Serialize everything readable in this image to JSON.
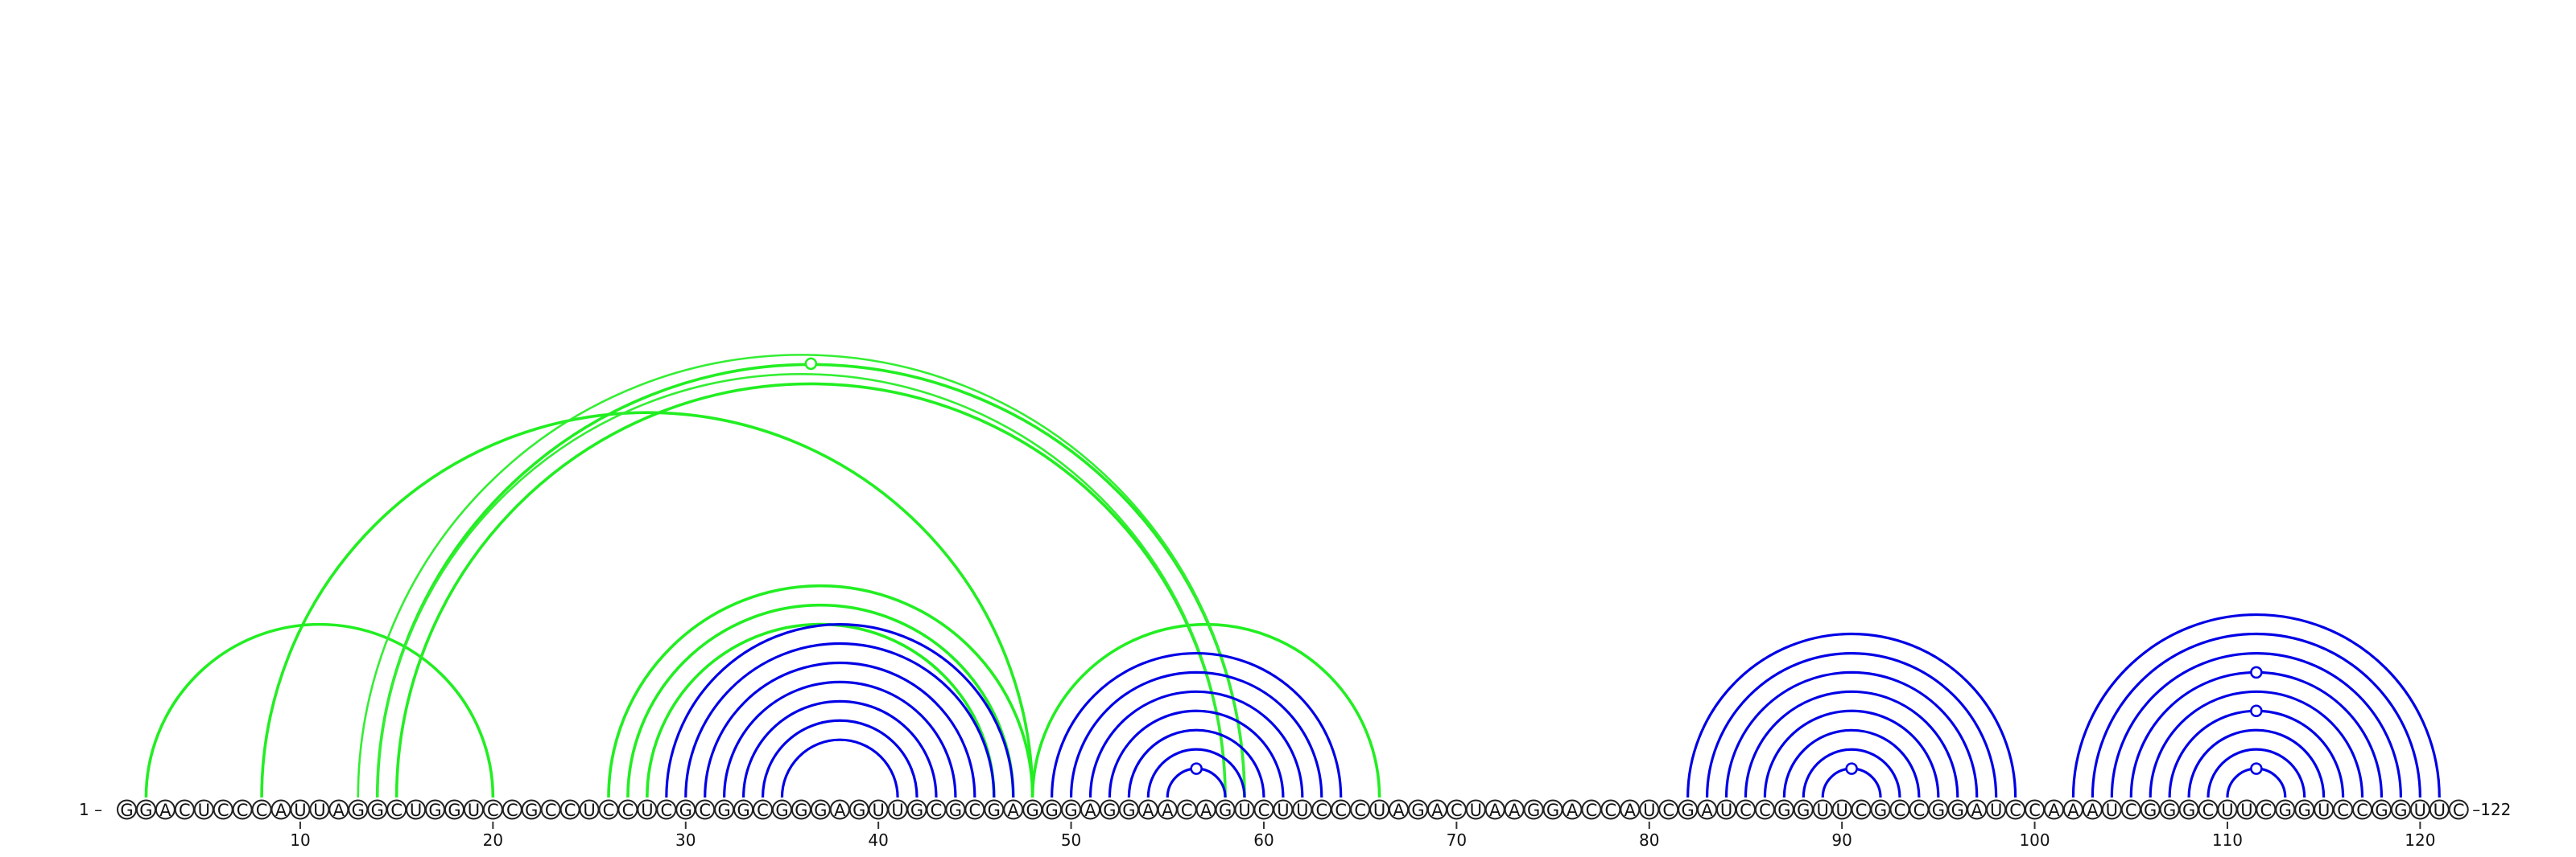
{
  "sequence": "GGACUCCCAUUAGGCUGGUCCGCCUCCUCGCGGCGGGAGUUGCGCGAGGGAGGAACAGUCUUCCCUAGACUAAGGACCAUCGAUCCGGUUCGCCGGAUCCAAAUCGGGCUUCGGUCCGGUUC",
  "labels": {
    "start": "1 –",
    "end": "–122"
  },
  "ticks": [
    {
      "pos": 10,
      "label": "10"
    },
    {
      "pos": 20,
      "label": "20"
    },
    {
      "pos": 30,
      "label": "30"
    },
    {
      "pos": 40,
      "label": "40"
    },
    {
      "pos": 50,
      "label": "50"
    },
    {
      "pos": 60,
      "label": "60"
    },
    {
      "pos": 70,
      "label": "70"
    },
    {
      "pos": 80,
      "label": "80"
    },
    {
      "pos": 90,
      "label": "90"
    },
    {
      "pos": 100,
      "label": "100"
    },
    {
      "pos": 110,
      "label": "110"
    },
    {
      "pos": 120,
      "label": "120"
    }
  ],
  "colors": {
    "predicted": "#0000e6",
    "reference": "#22ee22"
  },
  "blue_pairs": [
    [
      29,
      47
    ],
    [
      30,
      46
    ],
    [
      31,
      45
    ],
    [
      32,
      44
    ],
    [
      33,
      43
    ],
    [
      34,
      42
    ],
    [
      35,
      41
    ],
    [
      49,
      64
    ],
    [
      50,
      63
    ],
    [
      51,
      62
    ],
    [
      52,
      61
    ],
    [
      53,
      60
    ],
    [
      54,
      59
    ],
    [
      55,
      58
    ],
    [
      82,
      99
    ],
    [
      83,
      98
    ],
    [
      84,
      97
    ],
    [
      85,
      96
    ],
    [
      86,
      95
    ],
    [
      87,
      94
    ],
    [
      88,
      93
    ],
    [
      89,
      92
    ],
    [
      102,
      121
    ],
    [
      103,
      120
    ],
    [
      104,
      119
    ],
    [
      105,
      118
    ],
    [
      106,
      117
    ],
    [
      107,
      116
    ],
    [
      108,
      115
    ],
    [
      109,
      114
    ],
    [
      110,
      113
    ]
  ],
  "green_pairs": [
    [
      2,
      20
    ],
    [
      8,
      48
    ],
    [
      14,
      59
    ],
    [
      15,
      58
    ],
    [
      26,
      48
    ],
    [
      27,
      47
    ],
    [
      28,
      46
    ],
    [
      48,
      66
    ]
  ],
  "green_thin_pairs": [
    [
      13,
      59
    ],
    [
      14,
      58
    ]
  ],
  "blue_markers": [
    56.5,
    90.5,
    111.5
  ],
  "green_markers": [
    36.5
  ]
}
